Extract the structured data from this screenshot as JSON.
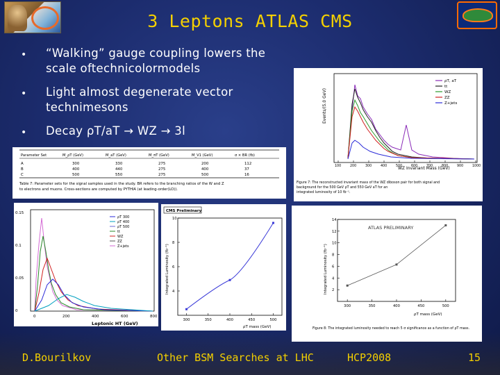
{
  "slide": {
    "title": "3 Leptons ATLAS CMS",
    "bullets": [
      {
        "line1": "“Walking” gauge coupling lowers the",
        "line2": "scale oftechnicolormodels"
      },
      {
        "line1": "Light almost degenerate vector",
        "line2": "technimesons"
      },
      {
        "text": "Decay ρT/aT → WZ → 3l"
      }
    ],
    "bullet_glyph": "•"
  },
  "table_figure": {
    "header": [
      "Parameter Set",
      "M_ρT (GeV)",
      "M_aT (GeV)",
      "M_πT (GeV)",
      "M_V1 (GeV)",
      "σ × BR (fb)"
    ],
    "rows": [
      [
        "A",
        "300",
        "330",
        "275",
        "200",
        "112"
      ],
      [
        "B",
        "400",
        "440",
        "275",
        "400",
        "37"
      ],
      [
        "C",
        "500",
        "550",
        "275",
        "500",
        "16"
      ]
    ],
    "caption": "Table 7: Parameter sets for the signal samples used in the study. BR refers to the branching ratios of the W and Z to electrons and muons. Cross-sections are computed by PYTHIA (at leading-order(LO))."
  },
  "wz_figure": {
    "legend": [
      "ρT, aT",
      "tt",
      "WZ",
      "ZZ",
      "Z+jets"
    ],
    "ylabel": "Events/(5.0 GeV)",
    "xlabel": "WZ Invariant Mass (GeV)",
    "xticks": [
      "100",
      "200",
      "300",
      "400",
      "500",
      "600",
      "700",
      "800",
      "900",
      "1000"
    ],
    "caption": "Figure 7: The reconstructed invariant mass of the WZ diboson pair for both signal and background for the 500 GeV ρT and 550 GeV aT for an integrated luminosity of 10 fb⁻¹."
  },
  "cms_ht_figure": {
    "legend": [
      "ρT 300",
      "ρT 400",
      "ρT 500",
      "tt",
      "WZ",
      "ZZ",
      "Z+jets"
    ],
    "yticks": [
      "0.15",
      "0.1",
      "0.05",
      "0"
    ],
    "xticks": [
      "0",
      "200",
      "400",
      "600",
      "800"
    ],
    "xlabel": "Leptonic HT (GeV)"
  },
  "chart_data": [
    {
      "type": "line",
      "title": "CMS Preliminary",
      "xlabel": "ρT mass (GeV)",
      "ylabel": "Integrated Luminosity (fb⁻¹)",
      "x": [
        300,
        400,
        500
      ],
      "y": [
        2.5,
        4.9,
        9.6
      ],
      "xlim": [
        280,
        520
      ],
      "ylim": [
        2,
        10
      ],
      "xticks": [
        300,
        350,
        400,
        450,
        500
      ],
      "yticks": [
        4,
        6,
        8,
        10
      ],
      "color": "#3a3ad8"
    },
    {
      "type": "line",
      "title": "ATLAS PRELIMINARY",
      "xlabel": "ρT mass (GeV)",
      "ylabel": "Integrated Luminosity (fb⁻¹)",
      "x": [
        300,
        400,
        500
      ],
      "y": [
        2.7,
        6.3,
        13.0
      ],
      "xlim": [
        280,
        520
      ],
      "ylim": [
        0,
        14
      ],
      "xticks": [
        300,
        350,
        400,
        450,
        500
      ],
      "yticks": [
        2,
        4,
        6,
        8,
        10,
        12,
        14
      ],
      "color": "#555555",
      "caption": "Figure 8: The integrated luminosity needed to reach 5 σ significance as a function of ρT mass."
    }
  ],
  "footer": {
    "author": "D.Bourilkov",
    "talk": "Other BSM Searches at LHC",
    "conference": "HCP2008",
    "page": "15"
  },
  "colors": {
    "title": "#f4d000",
    "footer": "#f4d000",
    "bullet_text": "#ffffff",
    "background": "#1c2c6e"
  }
}
